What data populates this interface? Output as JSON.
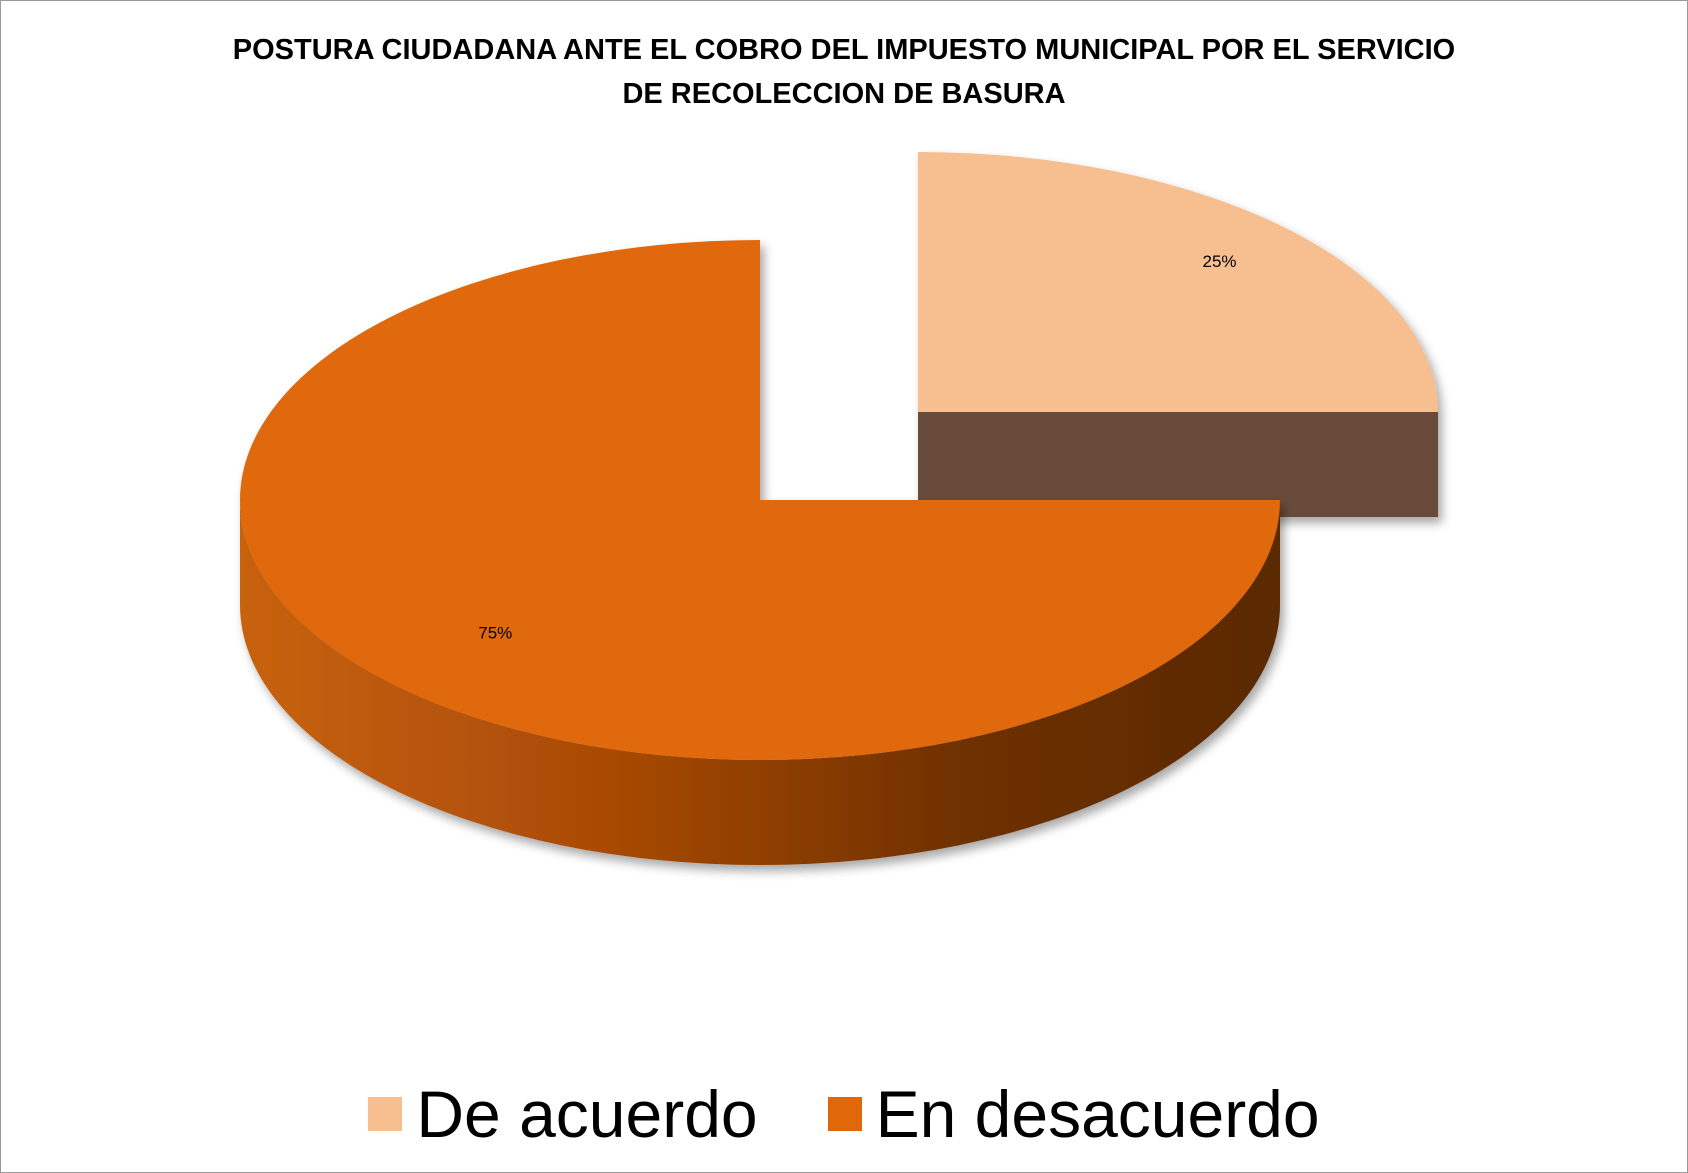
{
  "chart_data": {
    "type": "pie",
    "title_lines": [
      "POSTURA CIUDADANA ANTE EL COBRO DEL IMPUESTO MUNICIPAL POR EL SERVICIO",
      "DE RECOLECCION DE BASURA"
    ],
    "categories": [
      "De acuerdo",
      "En desacuerdo"
    ],
    "values": [
      25,
      75
    ],
    "data_labels": [
      "25%",
      "75%"
    ],
    "colors": [
      "#f7be8f",
      "#e06808"
    ],
    "side_colors": [
      "#674c3b",
      "#7a3604"
    ],
    "style": "3d-exploded",
    "legend_position": "bottom"
  }
}
